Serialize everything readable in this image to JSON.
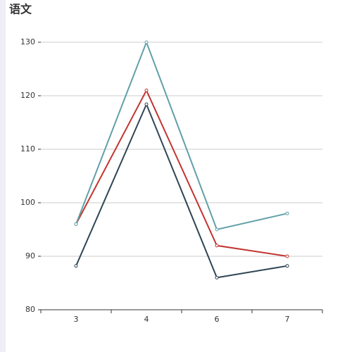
{
  "chart_data": {
    "type": "line",
    "title": "语文",
    "categories": [
      "3",
      "4",
      "6",
      "7"
    ],
    "series": [
      {
        "color": "#2f4554",
        "values": [
          88.2,
          118.4,
          86,
          88.2
        ]
      },
      {
        "color": "#c23531",
        "values": [
          96,
          121,
          92,
          90
        ]
      },
      {
        "color": "#61a0a8",
        "values": [
          96,
          130,
          95,
          98
        ]
      }
    ],
    "ylim": [
      80,
      130
    ],
    "yticks": [
      80,
      90,
      100,
      110,
      120,
      130
    ],
    "grid": true
  }
}
